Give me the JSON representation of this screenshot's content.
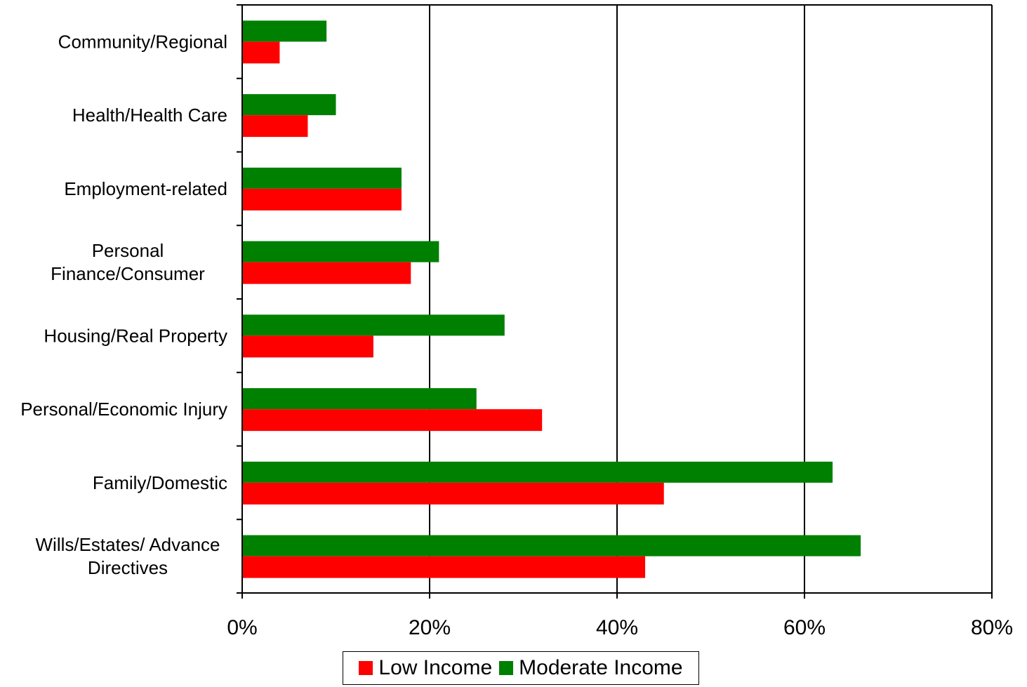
{
  "chart_data": {
    "type": "bar",
    "orientation": "horizontal",
    "categories": [
      [
        "Community/Regional"
      ],
      [
        "Health/Health Care"
      ],
      [
        "Employment-related"
      ],
      [
        "Personal",
        "Finance/Consumer"
      ],
      [
        "Housing/Real Property"
      ],
      [
        "Personal/Economic Injury"
      ],
      [
        "Family/Domestic"
      ],
      [
        "Wills/Estates/ Advance",
        "Directives"
      ]
    ],
    "series": [
      {
        "name": "Moderate Income",
        "color": "#008000",
        "values": [
          9,
          10,
          17,
          21,
          28,
          25,
          63,
          66
        ]
      },
      {
        "name": "Low Income",
        "color": "#ff0000",
        "values": [
          4,
          7,
          17,
          18,
          14,
          32,
          45,
          43
        ]
      }
    ],
    "x_ticks": [
      "0%",
      "20%",
      "40%",
      "60%",
      "80%"
    ],
    "xlim": [
      0,
      80
    ],
    "x_unit": "%",
    "grid": "vertical major gridlines",
    "legend_position": "bottom-center"
  },
  "legend": {
    "items": [
      {
        "label": "Low Income",
        "color": "#ff0000"
      },
      {
        "label": "Moderate Income",
        "color": "#008000"
      }
    ]
  }
}
